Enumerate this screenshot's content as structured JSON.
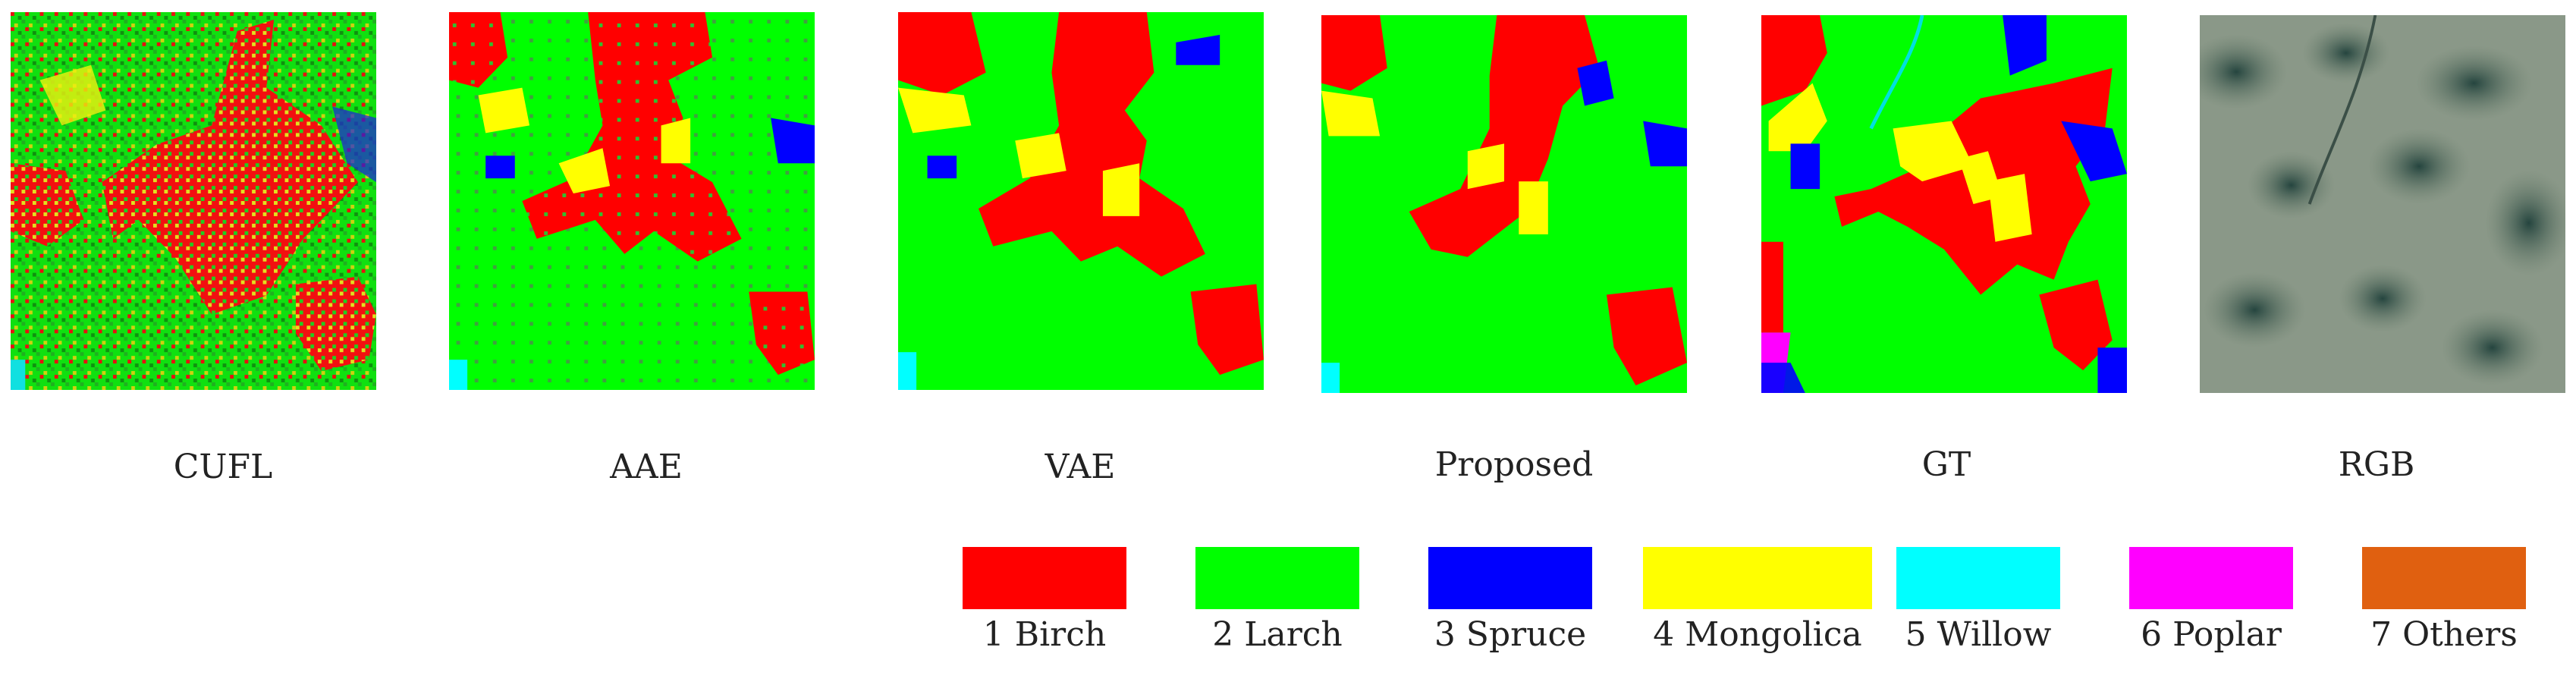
{
  "figure": {
    "panels": [
      {
        "id": "cufl",
        "caption": "CUFL",
        "kind": "classification-map"
      },
      {
        "id": "aae",
        "caption": "AAE",
        "kind": "classification-map"
      },
      {
        "id": "vae",
        "caption": "VAE",
        "kind": "classification-map"
      },
      {
        "id": "proposed",
        "caption": "Proposed",
        "kind": "classification-map"
      },
      {
        "id": "gt",
        "caption": "GT",
        "kind": "ground-truth-map"
      },
      {
        "id": "rgb",
        "caption": "RGB",
        "kind": "aerial-image"
      }
    ],
    "legend": [
      {
        "label": "1 Birch",
        "color": "#ff0000"
      },
      {
        "label": "2 Larch",
        "color": "#00ff00"
      },
      {
        "label": "3 Spruce",
        "color": "#0000ff"
      },
      {
        "label": "4 Mongolica",
        "color": "#ffff00"
      },
      {
        "label": "5 Willow",
        "color": "#00ffff"
      },
      {
        "label": "6 Poplar",
        "color": "#ff00ff"
      },
      {
        "label": "7 Others",
        "color": "#e06010"
      }
    ]
  }
}
